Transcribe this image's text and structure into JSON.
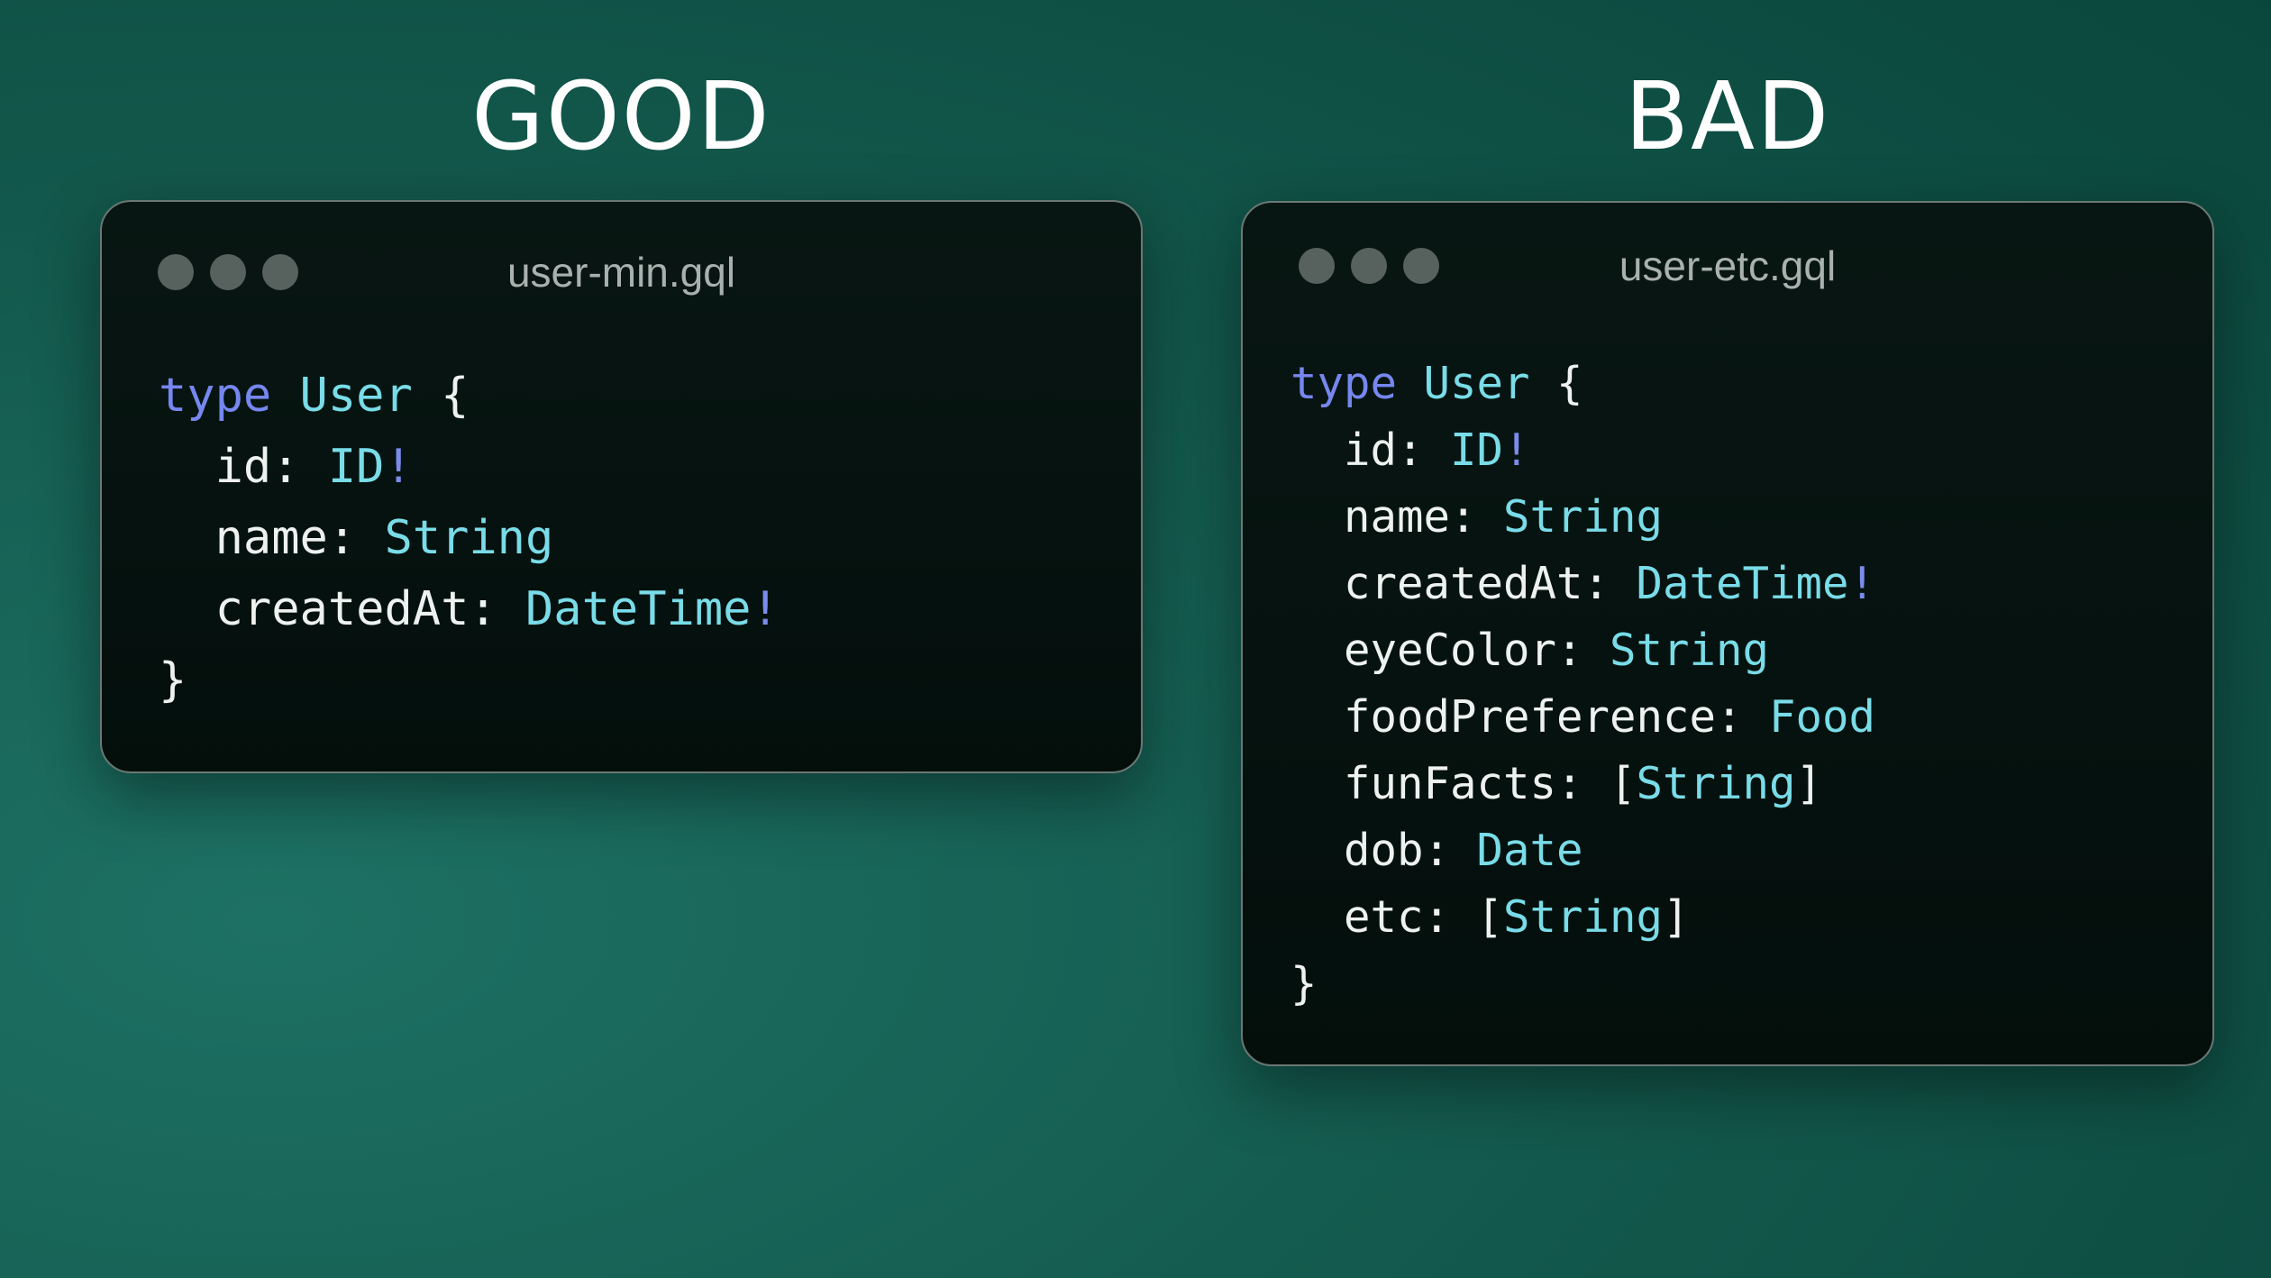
{
  "headings": {
    "left": "GOOD",
    "right": "BAD"
  },
  "colors": {
    "heading": "#ffffff",
    "background_light": "#1d7164",
    "background_mid": "#13584c",
    "background_dark": "#0a463c",
    "window_bg_top": "#081613",
    "window_bg_bottom": "#040f0c",
    "window_border": "#6b7874",
    "window_dot": "#57625e",
    "window_title": "#a9b1ae",
    "plain": "#edf1ef",
    "keyword": "#7687f0",
    "typename": "#79dce8",
    "bang": "#7b8cec"
  },
  "windows": [
    {
      "id": "good",
      "title": "user-min.gql",
      "code": [
        [
          {
            "t": "type",
            "c": "keyword"
          },
          {
            "t": " ",
            "c": "plain"
          },
          {
            "t": "User",
            "c": "typename"
          },
          {
            "t": " {",
            "c": "plain"
          }
        ],
        [
          {
            "t": "  id: ",
            "c": "plain"
          },
          {
            "t": "ID",
            "c": "typename"
          },
          {
            "t": "!",
            "c": "bang"
          }
        ],
        [
          {
            "t": "  name: ",
            "c": "plain"
          },
          {
            "t": "String",
            "c": "typename"
          }
        ],
        [
          {
            "t": "  createdAt: ",
            "c": "plain"
          },
          {
            "t": "DateTime",
            "c": "typename"
          },
          {
            "t": "!",
            "c": "bang"
          }
        ],
        [
          {
            "t": "}",
            "c": "plain"
          }
        ]
      ]
    },
    {
      "id": "etc",
      "title": "user-etc.gql",
      "code": [
        [
          {
            "t": "type",
            "c": "keyword"
          },
          {
            "t": " ",
            "c": "plain"
          },
          {
            "t": "User",
            "c": "typename"
          },
          {
            "t": " {",
            "c": "plain"
          }
        ],
        [
          {
            "t": "  id: ",
            "c": "plain"
          },
          {
            "t": "ID",
            "c": "typename"
          },
          {
            "t": "!",
            "c": "bang"
          }
        ],
        [
          {
            "t": "  name: ",
            "c": "plain"
          },
          {
            "t": "String",
            "c": "typename"
          }
        ],
        [
          {
            "t": "  createdAt: ",
            "c": "plain"
          },
          {
            "t": "DateTime",
            "c": "typename"
          },
          {
            "t": "!",
            "c": "bang"
          }
        ],
        [
          {
            "t": "  eyeColor: ",
            "c": "plain"
          },
          {
            "t": "String",
            "c": "typename"
          }
        ],
        [
          {
            "t": "  foodPreference: ",
            "c": "plain"
          },
          {
            "t": "Food",
            "c": "typename"
          }
        ],
        [
          {
            "t": "  funFacts: [",
            "c": "plain"
          },
          {
            "t": "String",
            "c": "typename"
          },
          {
            "t": "]",
            "c": "plain"
          }
        ],
        [
          {
            "t": "  dob: ",
            "c": "plain"
          },
          {
            "t": "Date",
            "c": "typename"
          }
        ],
        [
          {
            "t": "  etc: [",
            "c": "plain"
          },
          {
            "t": "String",
            "c": "typename"
          },
          {
            "t": "]",
            "c": "plain"
          }
        ],
        [
          {
            "t": "}",
            "c": "plain"
          }
        ]
      ]
    }
  ]
}
